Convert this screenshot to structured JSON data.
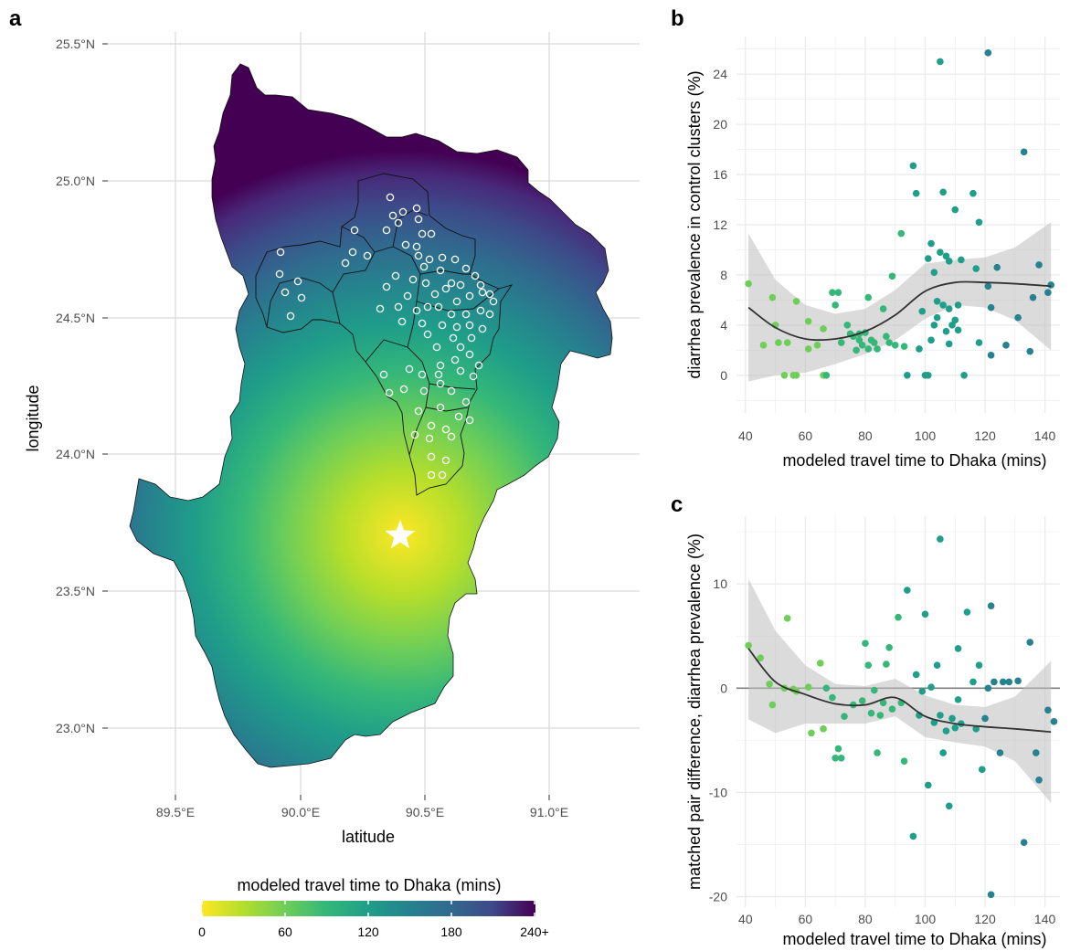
{
  "panels": {
    "a": "a",
    "b": "b",
    "c": "c"
  },
  "colors": {
    "viridis": [
      "#fde725",
      "#b5de2b",
      "#6ece58",
      "#35b779",
      "#1f9e89",
      "#26828e",
      "#31688e",
      "#3e4989",
      "#482878",
      "#440154"
    ],
    "grid": "#ebebeb",
    "map_grid": "#d9d9d9",
    "smooth_line": "#333333",
    "ribbon": "#bdbdbd",
    "zero_line": "#7f7f7f"
  },
  "map": {
    "xlabel": "latitude",
    "ylabel": "longitude",
    "x_ticks": [
      "89.5°E",
      "90.0°E",
      "90.5°E",
      "91.0°E"
    ],
    "y_ticks": [
      "25.5°N",
      "25.0°N",
      "24.5°N",
      "24.0°N",
      "23.5°N",
      "23.0°N"
    ],
    "legend": {
      "title": "modeled travel time to Dhaka (mins)",
      "ticks": [
        "0",
        "60",
        "120",
        "180",
        "240+"
      ]
    }
  },
  "chart_data": [
    {
      "panel": "b",
      "type": "scatter",
      "xlabel": "modeled travel time to Dhaka (mins)",
      "ylabel": "diarrhea prevalence in control clusters (%)",
      "xlim": [
        37,
        145
      ],
      "ylim": [
        -3,
        27
      ],
      "x_ticks": [
        40,
        60,
        80,
        100,
        120,
        140
      ],
      "y_ticks": [
        0,
        4,
        8,
        12,
        16,
        20,
        24
      ],
      "grid": true,
      "points": [
        [
          41,
          7.3
        ],
        [
          46,
          2.4
        ],
        [
          49,
          6.2
        ],
        [
          50,
          4
        ],
        [
          51,
          2.6
        ],
        [
          53,
          0
        ],
        [
          54,
          2.6
        ],
        [
          56,
          0
        ],
        [
          57,
          5.9
        ],
        [
          57,
          0
        ],
        [
          61,
          4.3
        ],
        [
          61,
          2.1
        ],
        [
          64,
          2.4
        ],
        [
          66,
          3.7
        ],
        [
          66,
          0
        ],
        [
          67,
          0
        ],
        [
          69,
          6.6
        ],
        [
          70,
          5.6
        ],
        [
          71,
          6.6
        ],
        [
          72,
          2.6
        ],
        [
          74,
          4
        ],
        [
          75,
          3.3
        ],
        [
          76,
          3.1
        ],
        [
          77,
          2
        ],
        [
          78,
          2.8
        ],
        [
          78,
          3.3
        ],
        [
          79,
          2.4
        ],
        [
          80,
          3.4
        ],
        [
          81,
          2.1
        ],
        [
          81,
          6.2
        ],
        [
          82,
          2.8
        ],
        [
          83,
          2.6
        ],
        [
          84,
          2.1
        ],
        [
          86,
          5.3
        ],
        [
          87,
          3.1
        ],
        [
          88,
          2.6
        ],
        [
          89,
          7.9
        ],
        [
          90,
          2.4
        ],
        [
          92,
          11.3
        ],
        [
          93,
          2.3
        ],
        [
          94,
          0
        ],
        [
          96,
          16.7
        ],
        [
          97,
          14.5
        ],
        [
          98,
          2.1
        ],
        [
          99,
          5.1
        ],
        [
          100,
          0
        ],
        [
          101,
          0
        ],
        [
          101,
          9.3
        ],
        [
          102,
          10.5
        ],
        [
          102,
          2.8
        ],
        [
          103,
          8.2
        ],
        [
          103,
          4
        ],
        [
          104,
          4.6
        ],
        [
          104,
          5.9
        ],
        [
          105,
          25
        ],
        [
          105,
          9.8
        ],
        [
          106,
          14.6
        ],
        [
          106,
          5.6
        ],
        [
          107,
          9.5
        ],
        [
          107,
          3.5
        ],
        [
          108,
          2.5
        ],
        [
          108,
          5.3
        ],
        [
          108,
          9.1
        ],
        [
          109,
          4
        ],
        [
          110,
          13.2
        ],
        [
          110,
          4.4
        ],
        [
          111,
          3.6
        ],
        [
          111,
          5.6
        ],
        [
          112,
          9.2
        ],
        [
          113,
          0
        ],
        [
          116,
          14.5
        ],
        [
          117,
          8.5
        ],
        [
          118,
          12.2
        ],
        [
          118,
          2.6
        ],
        [
          121,
          25.7
        ],
        [
          121,
          7.1
        ],
        [
          122,
          1.6
        ],
        [
          122,
          5.4
        ],
        [
          124,
          8.6
        ],
        [
          127,
          2.4
        ],
        [
          131,
          4.6
        ],
        [
          133,
          17.8
        ],
        [
          135,
          1.9
        ],
        [
          136,
          6.2
        ],
        [
          138,
          8.8
        ],
        [
          141,
          6.6
        ],
        [
          142,
          7.2
        ]
      ],
      "smooth_fit": [
        [
          41,
          5.4
        ],
        [
          50,
          3.8
        ],
        [
          60,
          2.9
        ],
        [
          70,
          2.9
        ],
        [
          80,
          3.5
        ],
        [
          90,
          4.8
        ],
        [
          100,
          6.7
        ],
        [
          110,
          7.4
        ],
        [
          120,
          7.4
        ],
        [
          130,
          7.3
        ],
        [
          142,
          7.1
        ]
      ],
      "ribbon_upper": [
        [
          41,
          11.3
        ],
        [
          50,
          7.6
        ],
        [
          60,
          5.6
        ],
        [
          70,
          4.9
        ],
        [
          80,
          5.3
        ],
        [
          90,
          6.8
        ],
        [
          100,
          8.9
        ],
        [
          110,
          9.2
        ],
        [
          120,
          9.4
        ],
        [
          130,
          10.2
        ],
        [
          142,
          12.2
        ]
      ],
      "ribbon_lower": [
        [
          41,
          -0.5
        ],
        [
          50,
          0
        ],
        [
          60,
          0.2
        ],
        [
          70,
          0.9
        ],
        [
          80,
          1.7
        ],
        [
          90,
          2.8
        ],
        [
          100,
          4.5
        ],
        [
          110,
          5.6
        ],
        [
          120,
          5.4
        ],
        [
          130,
          4.4
        ],
        [
          142,
          2
        ]
      ]
    },
    {
      "panel": "c",
      "type": "scatter",
      "xlabel": "modeled travel time to Dhaka (mins)",
      "ylabel": "matched pair difference, diarrhea prevalence (%)",
      "xlim": [
        37,
        145
      ],
      "ylim": [
        -21,
        16.5
      ],
      "x_ticks": [
        40,
        60,
        80,
        100,
        120,
        140
      ],
      "y_ticks": [
        -20,
        -10,
        0,
        10
      ],
      "grid": true,
      "zero_line": 0,
      "points": [
        [
          41,
          4.1
        ],
        [
          45,
          2.9
        ],
        [
          48,
          0.4
        ],
        [
          49,
          -1.6
        ],
        [
          53,
          0
        ],
        [
          54,
          6.7
        ],
        [
          56,
          -0.1
        ],
        [
          57,
          -0.3
        ],
        [
          61,
          0.1
        ],
        [
          62,
          -4.3
        ],
        [
          65,
          2.4
        ],
        [
          66,
          -3.9
        ],
        [
          67,
          0
        ],
        [
          69,
          -0.9
        ],
        [
          70,
          -6.7
        ],
        [
          71,
          -5.8
        ],
        [
          72,
          -6.7
        ],
        [
          73,
          -2.7
        ],
        [
          76,
          -1.6
        ],
        [
          79,
          -1.2
        ],
        [
          80,
          4.3
        ],
        [
          81,
          2.2
        ],
        [
          82,
          -2.4
        ],
        [
          83,
          -0.2
        ],
        [
          84,
          -6.2
        ],
        [
          85,
          -2.6
        ],
        [
          86,
          -1.4
        ],
        [
          87,
          2.3
        ],
        [
          88,
          3.9
        ],
        [
          89,
          -2
        ],
        [
          91,
          6.8
        ],
        [
          92,
          -1.4
        ],
        [
          93,
          -7
        ],
        [
          94,
          9.4
        ],
        [
          96,
          -14.2
        ],
        [
          97,
          1.3
        ],
        [
          98,
          -2.6
        ],
        [
          99,
          -0.3
        ],
        [
          100,
          7.1
        ],
        [
          101,
          -9.3
        ],
        [
          102,
          0.1
        ],
        [
          103,
          -3.3
        ],
        [
          104,
          2.2
        ],
        [
          105,
          14.3
        ],
        [
          105,
          -2.6
        ],
        [
          106,
          -6.2
        ],
        [
          107,
          -4.1
        ],
        [
          108,
          -11.3
        ],
        [
          109,
          -2.9
        ],
        [
          110,
          -3.8
        ],
        [
          111,
          -1.1
        ],
        [
          111,
          3.8
        ],
        [
          112,
          -3.4
        ],
        [
          114,
          7.3
        ],
        [
          116,
          0.6
        ],
        [
          117,
          -3.9
        ],
        [
          118,
          2.2
        ],
        [
          119,
          -7.8
        ],
        [
          120,
          -2.9
        ],
        [
          121,
          0
        ],
        [
          122,
          -19.8
        ],
        [
          122,
          7.9
        ],
        [
          123,
          0.6
        ],
        [
          125,
          -6.2
        ],
        [
          126,
          0.6
        ],
        [
          128,
          0.6
        ],
        [
          131,
          0.7
        ],
        [
          133,
          -14.8
        ],
        [
          135,
          4.4
        ],
        [
          137,
          -6.2
        ],
        [
          138,
          -8.8
        ],
        [
          141,
          -2.1
        ],
        [
          143,
          -3.2
        ]
      ],
      "smooth_fit": [
        [
          41,
          3.8
        ],
        [
          50,
          0.6
        ],
        [
          60,
          -0.6
        ],
        [
          70,
          -1.5
        ],
        [
          80,
          -1.6
        ],
        [
          90,
          -0.9
        ],
        [
          100,
          -2.7
        ],
        [
          110,
          -3.4
        ],
        [
          120,
          -3.7
        ],
        [
          130,
          -3.9
        ],
        [
          142,
          -4.2
        ]
      ],
      "ribbon_upper": [
        [
          41,
          10.5
        ],
        [
          50,
          5.5
        ],
        [
          60,
          2.2
        ],
        [
          70,
          0.4
        ],
        [
          80,
          0.2
        ],
        [
          90,
          0.9
        ],
        [
          100,
          -0.7
        ],
        [
          110,
          -1.6
        ],
        [
          120,
          -1.8
        ],
        [
          130,
          -0.8
        ],
        [
          142,
          2.6
        ]
      ],
      "ribbon_lower": [
        [
          41,
          -3
        ],
        [
          50,
          -4.3
        ],
        [
          60,
          -3.4
        ],
        [
          70,
          -3.4
        ],
        [
          80,
          -3.4
        ],
        [
          90,
          -2.7
        ],
        [
          100,
          -4.7
        ],
        [
          110,
          -5.2
        ],
        [
          120,
          -5.6
        ],
        [
          130,
          -7
        ],
        [
          142,
          -11
        ]
      ]
    }
  ]
}
